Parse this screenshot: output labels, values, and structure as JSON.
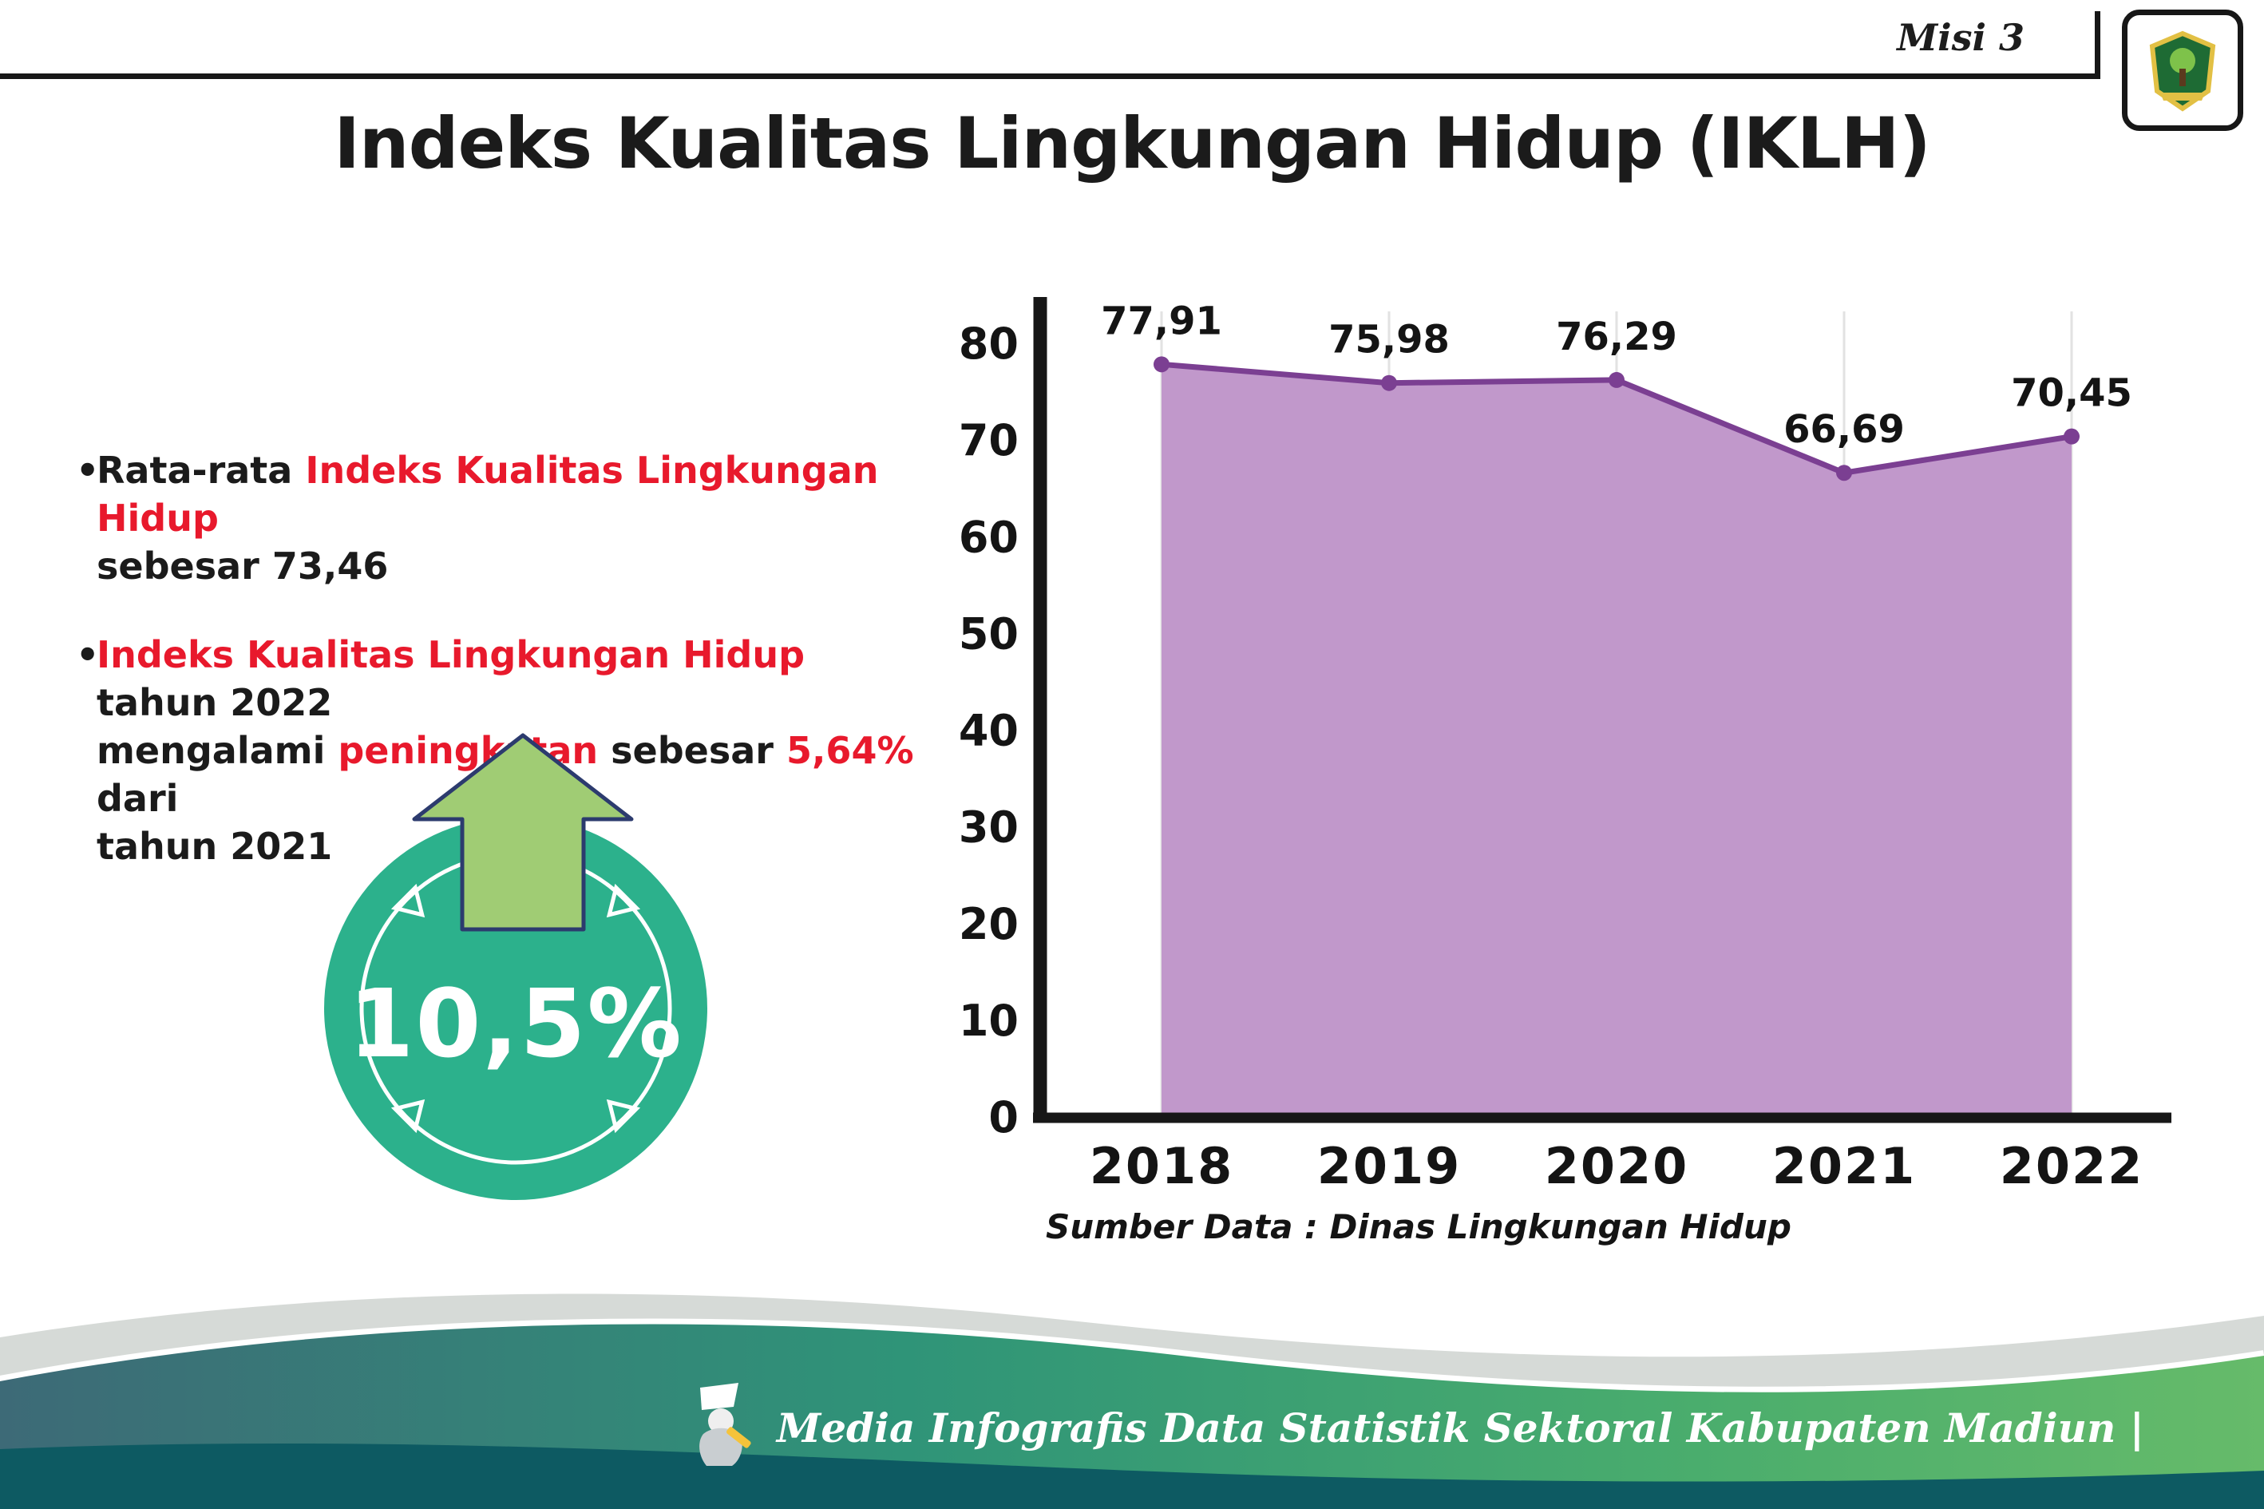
{
  "header": {
    "misi": "Misi 3"
  },
  "title": "Indeks Kualitas Lingkungan Hidup (IKLH)",
  "bullets": [
    {
      "lines": [
        [
          {
            "t": "Rata-rata ",
            "c": "d"
          },
          {
            "t": "Indeks Kualitas Lingkungan Hidup",
            "c": "r"
          }
        ],
        [
          {
            "t": "sebesar 73,46",
            "c": "d"
          }
        ]
      ]
    },
    {
      "lines": [
        [
          {
            "t": "Indeks Kualitas Lingkungan Hidup",
            "c": "r"
          },
          {
            "t": " tahun 2022",
            "c": "d"
          }
        ],
        [
          {
            "t": "mengalami ",
            "c": "d"
          },
          {
            "t": "peningkatan",
            "c": "r"
          },
          {
            "t": " sebesar ",
            "c": "d"
          },
          {
            "t": "5,64%",
            "c": "r"
          },
          {
            "t": " dari",
            "c": "d"
          }
        ],
        [
          {
            "t": "tahun 2021",
            "c": "d"
          }
        ]
      ]
    }
  ],
  "badge": {
    "value": "10,5%"
  },
  "chart_data": {
    "type": "area",
    "title": "",
    "categories": [
      "2018",
      "2019",
      "2020",
      "2021",
      "2022"
    ],
    "series": [
      {
        "name": "IKLH",
        "values": [
          77.91,
          75.98,
          76.29,
          66.69,
          70.45
        ]
      }
    ],
    "value_labels": [
      "77,91",
      "75,98",
      "76,29",
      "66,69",
      "70,45"
    ],
    "ylim": [
      0,
      80
    ],
    "ytick_step": 10,
    "grid": "vertical-light",
    "legend": "none",
    "line_color": "#7b3f92",
    "fill_color": "#c198cb",
    "source": "Sumber Data : Dinas Lingkungan Hidup"
  },
  "footer": {
    "credit": "Media Infografis Data Statistik Sektoral Kabupaten Madiun |"
  },
  "colors": {
    "accent_teal": "#2cb18c",
    "arrow_green": "#a0cc74",
    "highlight_red": "#e8192c",
    "axis_black": "#171717"
  }
}
